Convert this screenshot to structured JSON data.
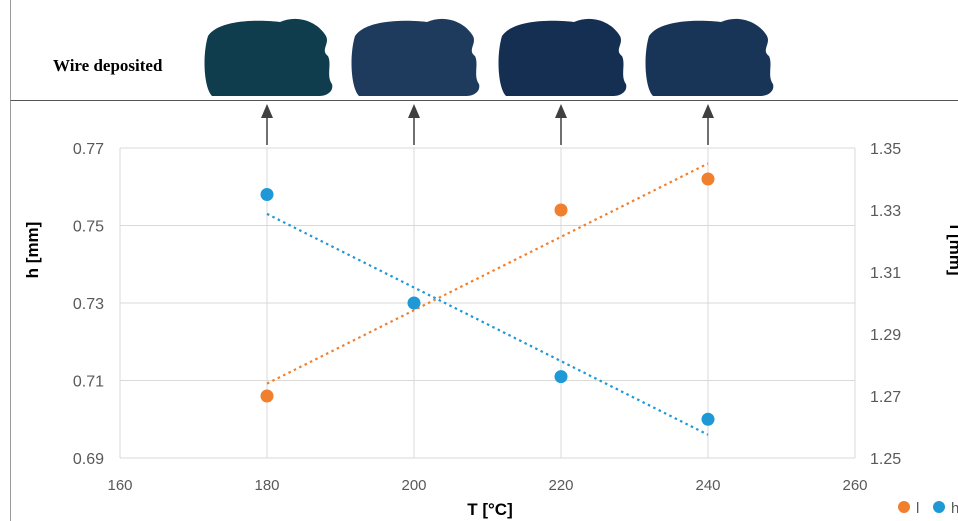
{
  "banner": {
    "label": "Wire deposited"
  },
  "chart_data": {
    "type": "scatter",
    "x": [
      180,
      200,
      220,
      240
    ],
    "xlabel": "T [°C]",
    "xlim": [
      160,
      260
    ],
    "xticks": [
      160,
      180,
      200,
      220,
      240,
      260
    ],
    "y_left": {
      "label": "h [mm]",
      "lim": [
        0.69,
        0.77
      ],
      "ticks": [
        "0.69",
        "0.71",
        "0.73",
        "0.75",
        "0.77"
      ]
    },
    "y_right": {
      "label": "l [mm]",
      "lim": [
        1.25,
        1.35
      ],
      "ticks": [
        "1.25",
        "1.27",
        "1.29",
        "1.31",
        "1.33",
        "1.35"
      ]
    },
    "series": [
      {
        "name": "l",
        "axis": "right",
        "color": "#f07f2e",
        "values": [
          1.27,
          null,
          1.33,
          1.34
        ],
        "trendline": {
          "type": "linear",
          "dotted": true,
          "from": [
            180,
            1.274
          ],
          "to": [
            240,
            1.345
          ]
        }
      },
      {
        "name": "h",
        "axis": "left",
        "color": "#1f98d6",
        "values": [
          0.758,
          0.73,
          0.711,
          0.7
        ],
        "trendline": {
          "type": "linear",
          "dotted": true,
          "from": [
            180,
            0.753
          ],
          "to": [
            240,
            0.696
          ]
        }
      }
    ],
    "grid": "vertical",
    "legend": "bottom-right",
    "annotations": {
      "image_markers_at_x": [
        180,
        200,
        220,
        240
      ],
      "image_colors": [
        "#0f3d4d",
        "#1e3a5c",
        "#152f52",
        "#183558"
      ]
    }
  }
}
